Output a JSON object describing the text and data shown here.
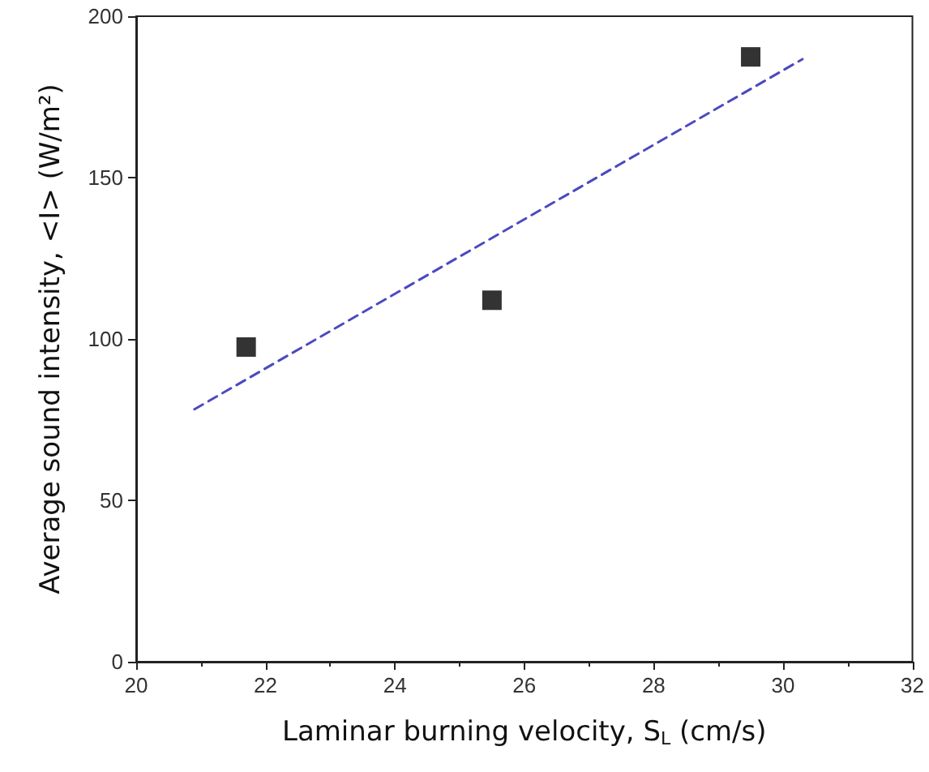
{
  "chart_data": {
    "type": "scatter",
    "xlabel": "Laminar burning velocity, S$_{L}$ (cm/s)",
    "ylabel": "Average sound intensity, <I> (W/m²)",
    "xlim": [
      20,
      32
    ],
    "xticks": [
      20,
      22,
      24,
      26,
      28,
      30,
      32
    ],
    "ylim": [
      0,
      200
    ],
    "yticks": [
      0,
      50,
      100,
      150,
      200
    ],
    "grid": false,
    "marker": "square",
    "series": [
      {
        "color": "#000000",
        "x": [
          21.7,
          25.5,
          29.5
        ],
        "values": [
          97.5,
          112,
          187.4
        ]
      },
      {
        "type": "line",
        "color": "#4a4ac0",
        "line_style": "dashed",
        "marker": "none",
        "x": [
          20.9,
          30.3
        ],
        "values": [
          78.2,
          186.7
        ]
      }
    ]
  }
}
